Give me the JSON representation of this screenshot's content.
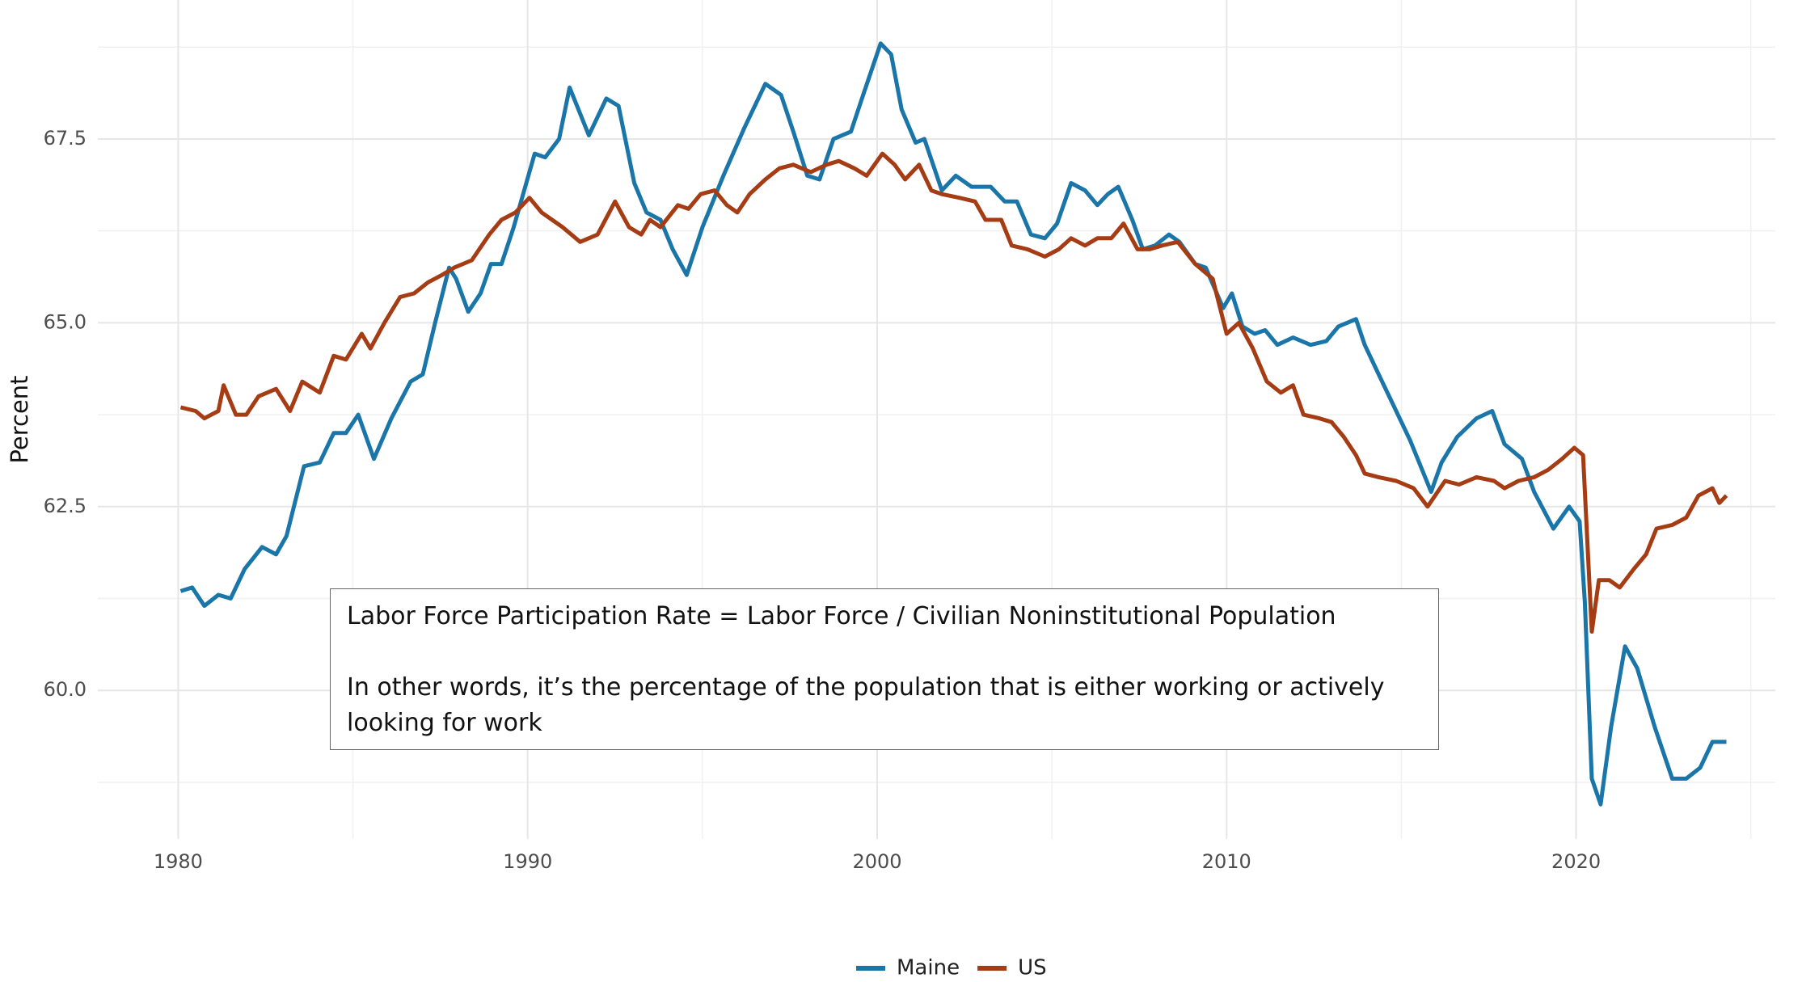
{
  "chart_data": {
    "type": "line",
    "y_label": "Percent",
    "annotation": [
      "Labor Force Participation Rate = Labor Force / Civilian Noninstitutional Population",
      "In other words, it’s the percentage of the population that is either working or actively looking for work"
    ],
    "xlim": [
      1977.7,
      2025.7
    ],
    "xticks": [
      1980,
      1990,
      2000,
      2010,
      2020
    ],
    "x_minor_ticks": [
      1985,
      1995,
      2005,
      2015,
      2025
    ],
    "ylim": [
      57.98,
      69.39
    ],
    "yticks": [
      {
        "value": 60,
        "label": "60.0"
      },
      {
        "value": 62.5,
        "label": "62.5"
      },
      {
        "value": 65,
        "label": "65.0"
      },
      {
        "value": 67.5,
        "label": "67.5"
      }
    ],
    "y_minor_ticks": [
      58.75,
      61.25,
      63.75,
      66.25,
      68.75
    ],
    "grid": true,
    "legend": "bottom",
    "series": [
      {
        "name": "Maine",
        "color": "#1a76a8",
        "x": [
          1980.07,
          1980.4,
          1980.75,
          1981.15,
          1981.5,
          1981.9,
          1982.4,
          1982.8,
          1983.1,
          1983.6,
          1984.05,
          1984.45,
          1984.8,
          1985.15,
          1985.6,
          1986.1,
          1986.65,
          1987.0,
          1987.35,
          1987.75,
          1987.95,
          1988.3,
          1988.65,
          1988.95,
          1989.25,
          1989.6,
          1990.2,
          1990.5,
          1990.9,
          1991.2,
          1991.75,
          1992.25,
          1992.6,
          1993.05,
          1993.4,
          1993.8,
          1994.15,
          1994.55,
          1995.0,
          1995.6,
          1996.2,
          1996.8,
          1997.25,
          1997.6,
          1998.0,
          1998.35,
          1998.75,
          1999.25,
          1999.6,
          2000.1,
          2000.4,
          2000.7,
          2001.1,
          2001.35,
          2001.85,
          2002.25,
          2002.7,
          2003.25,
          2003.65,
          2004.0,
          2004.4,
          2004.8,
          2005.15,
          2005.55,
          2005.95,
          2006.3,
          2006.6,
          2006.9,
          2007.3,
          2007.6,
          2007.95,
          2008.35,
          2008.65,
          2009.1,
          2009.4,
          2009.9,
          2010.15,
          2010.45,
          2010.8,
          2011.1,
          2011.45,
          2011.9,
          2012.4,
          2012.85,
          2013.2,
          2013.7,
          2013.95,
          2014.35,
          2014.85,
          2015.25,
          2015.85,
          2016.15,
          2016.6,
          2017.15,
          2017.6,
          2017.95,
          2018.45,
          2018.8,
          2019.35,
          2019.8,
          2020.1,
          2020.25,
          2020.45,
          2020.7,
          2021.0,
          2021.4,
          2021.75,
          2022.25,
          2022.75,
          2023.15,
          2023.55,
          2023.9,
          2024.3
        ],
        "values": [
          61.35,
          61.4,
          61.15,
          61.3,
          61.25,
          61.65,
          61.95,
          61.85,
          62.1,
          63.05,
          63.1,
          63.5,
          63.5,
          63.75,
          63.15,
          63.7,
          64.2,
          64.3,
          65.0,
          65.75,
          65.6,
          65.15,
          65.4,
          65.8,
          65.8,
          66.3,
          67.3,
          67.25,
          67.5,
          68.2,
          67.55,
          68.05,
          67.95,
          66.9,
          66.5,
          66.4,
          66.0,
          65.65,
          66.3,
          67.0,
          67.65,
          68.25,
          68.1,
          67.6,
          67.0,
          66.95,
          67.5,
          67.6,
          68.1,
          68.8,
          68.65,
          67.9,
          67.45,
          67.5,
          66.8,
          67.0,
          66.85,
          66.85,
          66.65,
          66.65,
          66.2,
          66.15,
          66.35,
          66.9,
          66.8,
          66.6,
          66.75,
          66.85,
          66.4,
          66.0,
          66.05,
          66.2,
          66.1,
          65.8,
          65.75,
          65.2,
          65.4,
          64.95,
          64.85,
          64.9,
          64.7,
          64.8,
          64.7,
          64.75,
          64.95,
          65.05,
          64.7,
          64.3,
          63.8,
          63.4,
          62.7,
          63.1,
          63.45,
          63.7,
          63.8,
          63.35,
          63.15,
          62.7,
          62.2,
          62.5,
          62.3,
          61.2,
          58.8,
          58.45,
          59.5,
          60.6,
          60.3,
          59.5,
          58.8,
          58.8,
          58.95,
          59.3,
          59.3
        ]
      },
      {
        "name": "US",
        "color": "#a63c14",
        "x": [
          1980.07,
          1980.5,
          1980.75,
          1981.15,
          1981.3,
          1981.65,
          1981.95,
          1982.3,
          1982.8,
          1983.2,
          1983.55,
          1984.05,
          1984.45,
          1984.8,
          1985.25,
          1985.5,
          1985.9,
          1986.35,
          1986.75,
          1987.15,
          1987.55,
          1987.9,
          1988.4,
          1988.9,
          1989.25,
          1989.65,
          1990.05,
          1990.4,
          1991.0,
          1991.5,
          1992.0,
          1992.5,
          1992.9,
          1993.25,
          1993.5,
          1993.8,
          1994.3,
          1994.6,
          1994.95,
          1995.35,
          1995.7,
          1996.0,
          1996.35,
          1996.8,
          1997.2,
          1997.6,
          1998.1,
          1998.55,
          1998.9,
          1999.35,
          1999.7,
          2000.15,
          2000.5,
          2000.8,
          2001.2,
          2001.55,
          2001.85,
          2002.35,
          2002.8,
          2003.1,
          2003.55,
          2003.85,
          2004.3,
          2004.8,
          2005.2,
          2005.55,
          2005.95,
          2006.3,
          2006.7,
          2007.05,
          2007.45,
          2007.8,
          2008.15,
          2008.6,
          2009.1,
          2009.6,
          2010.0,
          2010.35,
          2010.75,
          2011.15,
          2011.55,
          2011.9,
          2012.2,
          2012.65,
          2013.0,
          2013.35,
          2013.7,
          2013.95,
          2014.35,
          2014.85,
          2015.35,
          2015.75,
          2016.25,
          2016.65,
          2017.15,
          2017.65,
          2017.95,
          2018.35,
          2018.8,
          2019.2,
          2019.6,
          2019.95,
          2020.2,
          2020.45,
          2020.65,
          2020.95,
          2021.25,
          2021.65,
          2022.0,
          2022.3,
          2022.75,
          2023.15,
          2023.5,
          2023.9,
          2024.1,
          2024.3
        ],
        "values": [
          63.85,
          63.8,
          63.7,
          63.8,
          64.15,
          63.75,
          63.75,
          64.0,
          64.1,
          63.8,
          64.2,
          64.05,
          64.55,
          64.5,
          64.85,
          64.65,
          65.0,
          65.35,
          65.4,
          65.55,
          65.65,
          65.75,
          65.85,
          66.2,
          66.4,
          66.5,
          66.7,
          66.5,
          66.3,
          66.1,
          66.2,
          66.65,
          66.3,
          66.2,
          66.4,
          66.3,
          66.6,
          66.55,
          66.75,
          66.8,
          66.6,
          66.5,
          66.75,
          66.95,
          67.1,
          67.15,
          67.05,
          67.15,
          67.2,
          67.1,
          67.0,
          67.3,
          67.15,
          66.95,
          67.15,
          66.8,
          66.75,
          66.7,
          66.65,
          66.4,
          66.4,
          66.05,
          66.0,
          65.9,
          66.0,
          66.15,
          66.05,
          66.15,
          66.15,
          66.35,
          66.0,
          66.0,
          66.05,
          66.1,
          65.8,
          65.6,
          64.85,
          65.0,
          64.65,
          64.2,
          64.05,
          64.15,
          63.75,
          63.7,
          63.65,
          63.45,
          63.2,
          62.95,
          62.9,
          62.85,
          62.75,
          62.5,
          62.85,
          62.8,
          62.9,
          62.85,
          62.75,
          62.85,
          62.9,
          63.0,
          63.15,
          63.3,
          63.2,
          60.8,
          61.5,
          61.5,
          61.4,
          61.65,
          61.85,
          62.2,
          62.25,
          62.35,
          62.65,
          62.75,
          62.55,
          62.65
        ]
      }
    ]
  }
}
